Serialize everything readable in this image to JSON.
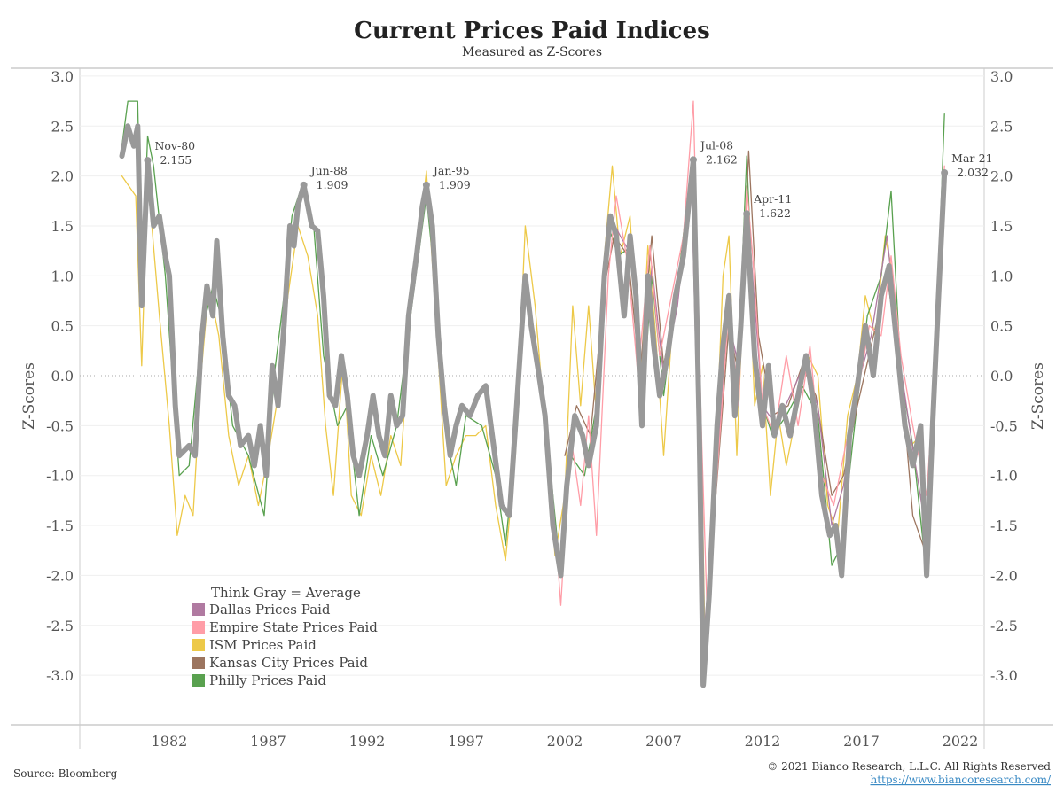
{
  "chart_data": {
    "type": "line",
    "title": "Current Prices Paid Indices",
    "subtitle": "Measured as Z-Scores",
    "ylabel": "Z-Scores",
    "ylabel_right": "Z-Scores",
    "xlabel": "",
    "ylim": [
      -3.5,
      3.0
    ],
    "xlim": [
      1977.8,
      2023.5
    ],
    "yticks": [
      "3.0",
      "2.5",
      "2.0",
      "1.5",
      "1.0",
      "0.5",
      "0.0",
      "-0.5",
      "-1.0",
      "-1.5",
      "-2.0",
      "-2.5",
      "-3.0"
    ],
    "ytick_values": [
      3.0,
      2.5,
      2.0,
      1.5,
      1.0,
      0.5,
      0.0,
      -0.5,
      -1.0,
      -1.5,
      -2.0,
      -2.5,
      -3.0
    ],
    "xticks": [
      "1982",
      "1987",
      "1992",
      "1997",
      "2002",
      "2007",
      "2012",
      "2017",
      "2022"
    ],
    "xtick_values": [
      1982,
      1987,
      1992,
      1997,
      2002,
      2007,
      2012,
      2017,
      2022
    ],
    "grid": true,
    "legend_title": "Think Gray = Average",
    "legend_position": "bottom-left",
    "series": [
      {
        "name": "ISM Prices Paid",
        "color": "#edc948",
        "x": [
          1979.6,
          1980.3,
          1980.6,
          1980.9,
          1981.5,
          1982.0,
          1982.4,
          1982.8,
          1983.2,
          1983.6,
          1984.0,
          1984.5,
          1985.0,
          1985.5,
          1986.0,
          1986.5,
          1987.0,
          1987.5,
          1988.0,
          1988.5,
          1989.0,
          1989.5,
          1989.9,
          1990.3,
          1990.8,
          1991.2,
          1991.7,
          1992.2,
          1992.7,
          1993.2,
          1993.7,
          1994.2,
          1994.7,
          1995.0,
          1995.5,
          1996.0,
          1996.5,
          1997.0,
          1997.5,
          1998.0,
          1998.5,
          1999.0,
          1999.5,
          2000.0,
          2000.5,
          2001.0,
          2001.5,
          2002.0,
          2002.4,
          2002.8,
          2003.2,
          2003.6,
          2004.0,
          2004.4,
          2004.8,
          2005.3,
          2005.8,
          2006.2,
          2006.6,
          2007.0,
          2007.5,
          2008.0,
          2008.5,
          2008.9,
          2009.1,
          2009.5,
          2010.0,
          2010.3,
          2010.7,
          2011.2,
          2011.6,
          2012.0,
          2012.4,
          2012.8,
          2013.2,
          2013.7,
          2014.3,
          2014.8,
          2015.3,
          2015.8,
          2016.3,
          2016.8,
          2017.2,
          2017.7,
          2018.2,
          2018.6,
          2019.0,
          2019.5,
          2020.0,
          2020.3,
          2020.8,
          2021.2
        ],
        "y": [
          2.0,
          1.8,
          0.1,
          2.0,
          0.6,
          -0.5,
          -1.6,
          -1.2,
          -1.4,
          0.0,
          0.9,
          0.4,
          -0.6,
          -1.1,
          -0.8,
          -1.3,
          -0.8,
          -0.2,
          0.8,
          1.5,
          1.2,
          0.6,
          -0.5,
          -1.2,
          0.2,
          -1.2,
          -1.4,
          -0.8,
          -1.2,
          -0.6,
          -0.9,
          0.6,
          1.5,
          2.05,
          0.5,
          -1.1,
          -0.8,
          -0.6,
          -0.6,
          -0.5,
          -1.3,
          -1.85,
          -0.8,
          1.5,
          0.7,
          -0.5,
          -1.8,
          -1.2,
          0.7,
          -0.3,
          0.7,
          -0.4,
          1.2,
          2.1,
          1.2,
          1.6,
          -0.2,
          1.3,
          0.4,
          -0.8,
          0.7,
          1.3,
          2.05,
          -0.6,
          -2.8,
          -1.5,
          1.0,
          1.4,
          -0.8,
          1.7,
          -0.3,
          0.1,
          -1.2,
          -0.4,
          -0.9,
          -0.4,
          0.2,
          0.0,
          -1.3,
          -1.6,
          -0.4,
          0.0,
          0.8,
          0.4,
          1.4,
          1.0,
          -0.2,
          -0.7,
          -0.6,
          -1.7,
          0.4,
          1.9
        ]
      },
      {
        "name": "Philly Prices Paid",
        "color": "#59a14f",
        "x": [
          1979.6,
          1979.9,
          1980.4,
          1980.6,
          1980.9,
          1981.2,
          1981.8,
          1982.5,
          1983.0,
          1983.6,
          1984.2,
          1984.6,
          1985.2,
          1986.0,
          1986.8,
          1987.3,
          1987.8,
          1988.2,
          1988.7,
          1989.3,
          1989.8,
          1990.5,
          1991.0,
          1991.6,
          1992.2,
          1992.8,
          1993.5,
          1994.0,
          1994.6,
          1995.0,
          1995.5,
          1996.0,
          1996.5,
          1997.0,
          1997.8,
          1998.5,
          1999.0,
          1999.6,
          2000.0,
          2000.6,
          2001.3,
          2001.8,
          2002.3,
          2003.0,
          2003.6,
          2004.2,
          2004.7,
          2005.4,
          2005.9,
          2006.4,
          2007.0,
          2007.7,
          2008.4,
          2008.9,
          2009.1,
          2009.6,
          2010.2,
          2010.7,
          2011.2,
          2011.7,
          2012.5,
          2013.2,
          2014.0,
          2014.8,
          2015.5,
          2016.0,
          2016.6,
          2017.3,
          2018.0,
          2018.5,
          2019.0,
          2019.6,
          2020.3,
          2020.8,
          2021.2
        ],
        "y": [
          2.3,
          2.75,
          2.75,
          0.8,
          2.4,
          2.1,
          1.0,
          -1.0,
          -0.9,
          0.4,
          0.9,
          0.6,
          -0.5,
          -0.8,
          -1.4,
          0.0,
          0.8,
          1.6,
          1.9,
          1.5,
          0.2,
          -0.5,
          -0.3,
          -1.4,
          -0.6,
          -1.0,
          -0.5,
          0.3,
          1.2,
          1.8,
          0.8,
          -0.6,
          -1.1,
          -0.4,
          -0.5,
          -1.0,
          -1.7,
          -0.5,
          0.8,
          0.1,
          -1.0,
          -2.0,
          -0.8,
          -1.0,
          -0.3,
          1.5,
          1.2,
          1.3,
          -0.4,
          1.0,
          -0.2,
          0.9,
          2.1,
          -1.5,
          -3.1,
          -1.0,
          0.8,
          -0.2,
          2.2,
          -0.1,
          -0.6,
          -0.4,
          -0.1,
          -0.4,
          -1.9,
          -1.7,
          -0.6,
          0.6,
          1.0,
          1.85,
          0.0,
          -0.7,
          -2.0,
          0.5,
          2.62
        ]
      },
      {
        "name": "Kansas City Prices Paid",
        "color": "#9c755f",
        "x": [
          2002.0,
          2002.6,
          2003.3,
          2004.0,
          2004.5,
          2005.2,
          2005.8,
          2006.4,
          2007.0,
          2007.7,
          2008.5,
          2009.0,
          2009.6,
          2010.3,
          2010.8,
          2011.3,
          2011.8,
          2012.5,
          2013.3,
          2014.0,
          2014.7,
          2015.5,
          2016.1,
          2016.8,
          2017.5,
          2018.3,
          2019.0,
          2019.6,
          2020.3,
          2020.8,
          2021.2
        ],
        "y": [
          -0.8,
          -0.3,
          -0.6,
          0.9,
          1.4,
          1.2,
          0.0,
          1.4,
          0.1,
          0.9,
          2.1,
          -3.0,
          -1.3,
          0.5,
          0.0,
          2.25,
          0.4,
          -0.4,
          -0.3,
          0.1,
          -0.2,
          -1.2,
          -1.0,
          -0.3,
          0.3,
          1.0,
          0.0,
          -1.4,
          -1.8,
          0.2,
          1.95
        ]
      },
      {
        "name": "Dallas Prices Paid",
        "color": "#b07aa1",
        "x": [
          2004.3,
          2004.8,
          2005.4,
          2005.9,
          2006.4,
          2007.0,
          2007.7,
          2008.4,
          2009.0,
          2009.6,
          2010.2,
          2010.8,
          2011.3,
          2012.0,
          2012.7,
          2013.4,
          2014.1,
          2014.8,
          2015.5,
          2016.1,
          2016.8,
          2017.5,
          2018.3,
          2018.9,
          2019.5,
          2020.3,
          2020.8,
          2021.2
        ],
        "y": [
          1.6,
          1.4,
          1.2,
          -0.3,
          1.1,
          0.0,
          0.7,
          2.0,
          -2.7,
          -1.2,
          0.6,
          0.1,
          1.5,
          -0.3,
          -0.5,
          -0.2,
          0.1,
          -0.3,
          -1.5,
          -1.1,
          -0.1,
          0.4,
          1.4,
          0.2,
          -0.6,
          -1.6,
          0.2,
          1.9
        ]
      },
      {
        "name": "Empire State Prices Paid",
        "color": "#ff9da7",
        "x": [
          2001.5,
          2001.8,
          2002.3,
          2002.8,
          2003.2,
          2003.6,
          2004.2,
          2004.6,
          2005.2,
          2005.7,
          2006.3,
          2006.8,
          2007.5,
          2008.0,
          2008.5,
          2008.9,
          2009.2,
          2009.7,
          2010.3,
          2010.8,
          2011.2,
          2011.5,
          2012.0,
          2012.6,
          2013.2,
          2013.8,
          2014.4,
          2015.0,
          2015.6,
          2016.2,
          2016.8,
          2017.4,
          2018.0,
          2018.5,
          2019.0,
          2019.6,
          2020.3,
          2020.8,
          2021.2
        ],
        "y": [
          -1.5,
          -2.3,
          -0.6,
          -1.3,
          -0.4,
          -1.6,
          1.0,
          1.8,
          1.1,
          0.0,
          1.3,
          0.2,
          0.9,
          1.4,
          2.75,
          -0.5,
          -2.4,
          -1.0,
          0.7,
          -0.3,
          1.9,
          1.2,
          -0.3,
          -0.6,
          0.2,
          -0.5,
          0.3,
          -1.0,
          -1.3,
          -0.7,
          -0.2,
          0.5,
          0.4,
          1.2,
          0.2,
          -0.5,
          -1.2,
          0.3,
          2.1
        ]
      },
      {
        "name": "Average",
        "color": "#999999",
        "x": [
          1979.6,
          1979.9,
          1980.2,
          1980.4,
          1980.6,
          1980.9,
          1981.2,
          1981.5,
          1981.8,
          1982.0,
          1982.3,
          1982.5,
          1983.0,
          1983.3,
          1983.6,
          1983.9,
          1984.2,
          1984.4,
          1984.7,
          1985.0,
          1985.3,
          1985.6,
          1986.0,
          1986.3,
          1986.6,
          1986.9,
          1987.2,
          1987.5,
          1987.8,
          1988.1,
          1988.3,
          1988.5,
          1988.8,
          1989.2,
          1989.5,
          1989.8,
          1990.1,
          1990.4,
          1990.7,
          1991.0,
          1991.3,
          1991.6,
          1992.0,
          1992.3,
          1992.6,
          1992.9,
          1993.2,
          1993.5,
          1993.8,
          1994.1,
          1994.5,
          1994.8,
          1995.0,
          1995.3,
          1995.6,
          1995.9,
          1996.2,
          1996.5,
          1996.8,
          1997.2,
          1997.6,
          1998.0,
          1998.4,
          1998.8,
          1999.2,
          1999.6,
          2000.0,
          2000.3,
          2000.7,
          2001.0,
          2001.4,
          2001.8,
          2002.1,
          2002.5,
          2002.9,
          2003.2,
          2003.6,
          2004.0,
          2004.3,
          2004.6,
          2005.0,
          2005.3,
          2005.6,
          2005.9,
          2006.2,
          2006.5,
          2006.8,
          2007.2,
          2007.6,
          2008.0,
          2008.5,
          2008.8,
          2009.0,
          2009.3,
          2009.7,
          2010.0,
          2010.3,
          2010.6,
          2010.9,
          2011.2,
          2011.6,
          2012.0,
          2012.3,
          2012.6,
          2013.0,
          2013.4,
          2013.8,
          2014.2,
          2014.6,
          2015.0,
          2015.4,
          2015.7,
          2016.0,
          2016.4,
          2016.8,
          2017.2,
          2017.6,
          2018.0,
          2018.4,
          2018.8,
          2019.2,
          2019.6,
          2020.0,
          2020.3,
          2020.6,
          2020.9,
          2021.2
        ],
        "y": [
          2.2,
          2.5,
          2.3,
          2.5,
          0.7,
          2.155,
          1.5,
          1.6,
          1.2,
          1.0,
          -0.3,
          -0.8,
          -0.7,
          -0.8,
          0.3,
          0.9,
          0.6,
          1.35,
          0.4,
          -0.2,
          -0.3,
          -0.7,
          -0.6,
          -0.9,
          -0.5,
          -1.0,
          0.1,
          -0.3,
          0.5,
          1.5,
          1.3,
          1.7,
          1.909,
          1.5,
          1.45,
          0.8,
          -0.2,
          -0.3,
          0.2,
          -0.2,
          -0.8,
          -1.0,
          -0.6,
          -0.2,
          -0.6,
          -0.8,
          -0.2,
          -0.5,
          -0.4,
          0.6,
          1.2,
          1.7,
          1.909,
          1.5,
          0.4,
          -0.3,
          -0.8,
          -0.5,
          -0.3,
          -0.4,
          -0.2,
          -0.1,
          -0.7,
          -1.3,
          -1.4,
          -0.2,
          1.0,
          0.5,
          0.0,
          -0.4,
          -1.5,
          -2.0,
          -1.1,
          -0.4,
          -0.6,
          -0.9,
          -0.5,
          1.0,
          1.6,
          1.4,
          0.6,
          1.4,
          0.8,
          -0.5,
          1.0,
          0.3,
          -0.2,
          0.2,
          0.8,
          1.2,
          2.162,
          -0.5,
          -3.1,
          -2.2,
          -0.5,
          0.3,
          0.8,
          -0.4,
          0.5,
          1.622,
          0.2,
          -0.5,
          0.1,
          -0.6,
          -0.3,
          -0.6,
          -0.2,
          0.2,
          -0.3,
          -1.2,
          -1.6,
          -1.5,
          -2.0,
          -0.6,
          -0.1,
          0.5,
          0.0,
          0.8,
          1.1,
          0.3,
          -0.5,
          -0.9,
          -0.5,
          -2.0,
          -0.5,
          0.8,
          2.032
        ]
      }
    ],
    "legend": [
      {
        "name": "Dallas Prices Paid",
        "color": "#b07aa1"
      },
      {
        "name": "Empire State Prices Paid",
        "color": "#ff9da7"
      },
      {
        "name": "ISM Prices Paid",
        "color": "#edc948"
      },
      {
        "name": "Kansas City Prices Paid",
        "color": "#9c755f"
      },
      {
        "name": "Philly Prices Paid",
        "color": "#59a14f"
      }
    ],
    "annotations": [
      {
        "label": "Nov-80",
        "value": "2.155",
        "x": 1980.9,
        "y": 2.155
      },
      {
        "label": "Jun-88",
        "value": "1.909",
        "x": 1988.8,
        "y": 1.909
      },
      {
        "label": "Jan-95",
        "value": "1.909",
        "x": 1995.0,
        "y": 1.909
      },
      {
        "label": "Jul-08",
        "value": "2.162",
        "x": 2008.5,
        "y": 2.162
      },
      {
        "label": "Apr-11",
        "value": "1.622",
        "x": 2011.2,
        "y": 1.622
      },
      {
        "label": "Mar-21",
        "value": "2.032",
        "x": 2021.2,
        "y": 2.032
      }
    ]
  },
  "footer": {
    "source": "Source: Bloomberg",
    "copyright": "© 2021 Bianco Research, L.L.C. All Rights Reserved",
    "url": "https://www.biancoresearch.com/"
  }
}
